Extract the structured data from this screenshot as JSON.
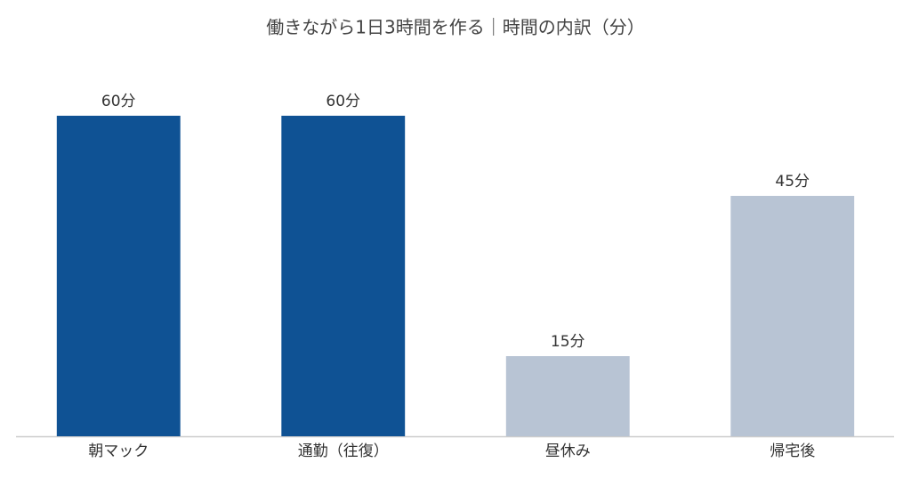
{
  "chart_data": {
    "type": "bar",
    "title": "働きながら1日3時間を作る｜時間の内訳（分）",
    "categories": [
      "朝マック",
      "通勤（往復）",
      "昼休み",
      "帰宅後"
    ],
    "values": [
      60,
      60,
      15,
      45
    ],
    "value_labels": [
      "60分",
      "60分",
      "15分",
      "45分"
    ],
    "colors": [
      "#0f5294",
      "#0f5294",
      "#b8c4d4",
      "#b8c4d4"
    ],
    "ylim": [
      0,
      60
    ],
    "grid": false
  }
}
